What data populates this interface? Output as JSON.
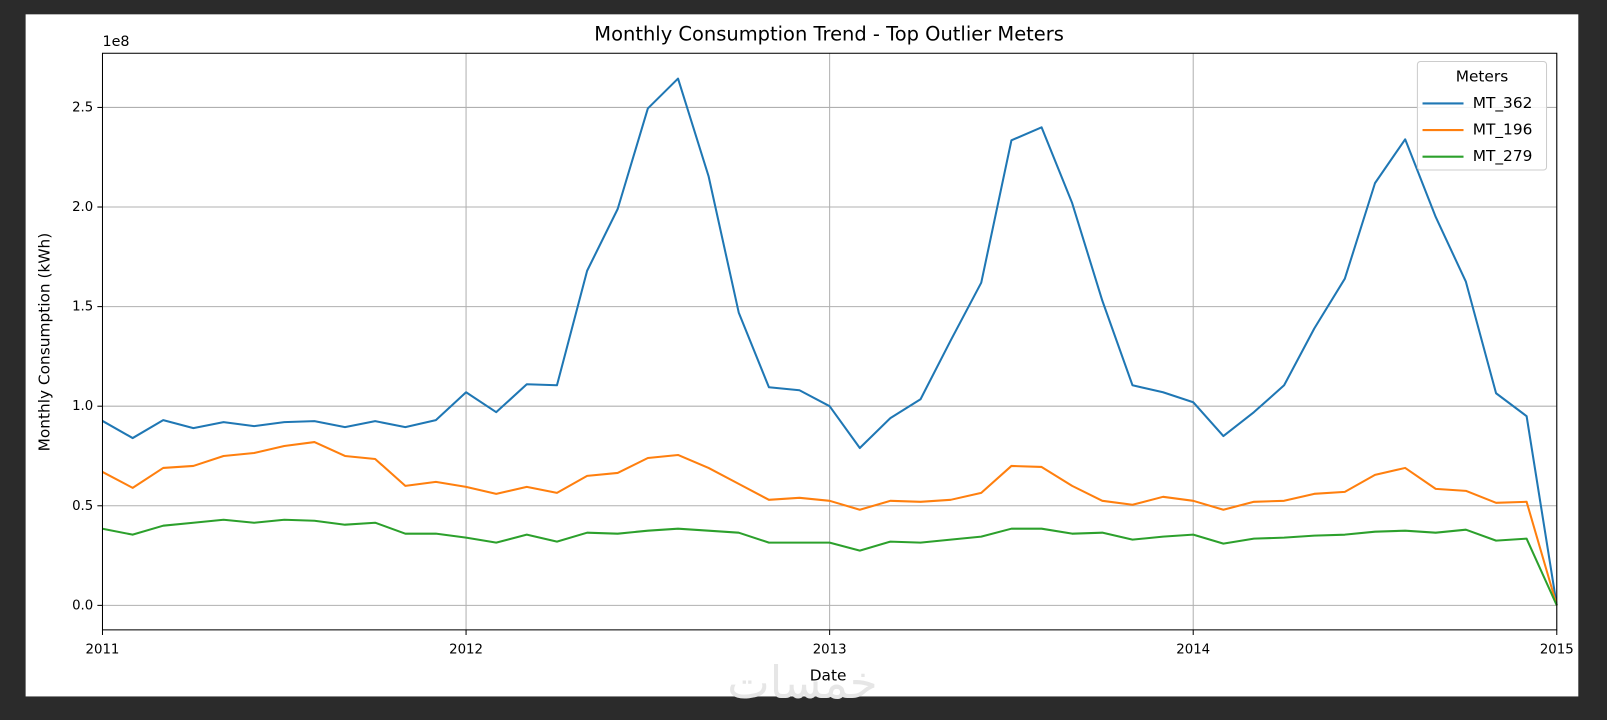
{
  "chart_data": {
    "type": "line",
    "title": "Monthly Consumption Trend - Top Outlier Meters",
    "xlabel": "Date",
    "ylabel": "Monthly Consumption (kWh)",
    "y_offset_label": "1e8",
    "watermark": "خمسات",
    "legend_title": "Meters",
    "legend_loc": "upper right",
    "grid": true,
    "xlim": [
      2011,
      2015
    ],
    "xticks": [
      2011,
      2012,
      2013,
      2014,
      2015
    ],
    "ylim": [
      -0.123,
      2.772
    ],
    "yticks": [
      {
        "value": 0,
        "label": "0.0"
      },
      0.5,
      {
        "value": 1,
        "label": "1.0"
      },
      1.5,
      {
        "value": 2,
        "label": "2.0"
      },
      2.5
    ],
    "x": [
      2011,
      2011.083,
      2011.167,
      2011.25,
      2011.333,
      2011.417,
      2011.5,
      2011.583,
      2011.667,
      2011.75,
      2011.833,
      2011.917,
      2012,
      2012.083,
      2012.167,
      2012.25,
      2012.333,
      2012.417,
      2012.5,
      2012.583,
      2012.667,
      2012.75,
      2012.833,
      2012.917,
      2013,
      2013.083,
      2013.167,
      2013.25,
      2013.333,
      2013.417,
      2013.5,
      2013.583,
      2013.667,
      2013.75,
      2013.833,
      2013.917,
      2014,
      2014.083,
      2014.167,
      2014.25,
      2014.333,
      2014.417,
      2014.5,
      2014.583,
      2014.667,
      2014.75,
      2014.833,
      2014.917,
      2015
    ],
    "series": [
      {
        "name": "MT_362",
        "color": "#1f77b4",
        "values": [
          0.926,
          0.84,
          0.93,
          0.89,
          0.92,
          0.9,
          0.92,
          0.925,
          0.895,
          0.925,
          0.895,
          0.93,
          1.07,
          0.97,
          1.11,
          1.105,
          1.68,
          1.99,
          2.495,
          2.645,
          2.155,
          1.47,
          1.095,
          1.08,
          1.0,
          0.79,
          0.94,
          1.035,
          1.33,
          1.62,
          2.335,
          2.4,
          2.02,
          1.53,
          1.105,
          1.07,
          1.02,
          0.85,
          0.97,
          1.105,
          1.39,
          1.64,
          2.12,
          2.34,
          1.95,
          1.625,
          1.065,
          0.95,
          0
        ]
      },
      {
        "name": "MT_196",
        "color": "#ff7f0e",
        "values": [
          0.67,
          0.59,
          0.69,
          0.7,
          0.75,
          0.765,
          0.8,
          0.82,
          0.75,
          0.735,
          0.6,
          0.62,
          0.595,
          0.56,
          0.595,
          0.565,
          0.65,
          0.665,
          0.74,
          0.755,
          0.69,
          0.61,
          0.53,
          0.54,
          0.525,
          0.48,
          0.525,
          0.52,
          0.53,
          0.565,
          0.7,
          0.695,
          0.6,
          0.525,
          0.505,
          0.545,
          0.525,
          0.48,
          0.52,
          0.525,
          0.56,
          0.57,
          0.655,
          0.69,
          0.585,
          0.575,
          0.515,
          0.52,
          0
        ]
      },
      {
        "name": "MT_279",
        "color": "#2ca02c",
        "values": [
          0.385,
          0.355,
          0.4,
          0.415,
          0.43,
          0.415,
          0.43,
          0.425,
          0.405,
          0.415,
          0.36,
          0.36,
          0.34,
          0.315,
          0.355,
          0.32,
          0.365,
          0.36,
          0.375,
          0.385,
          0.375,
          0.365,
          0.315,
          0.315,
          0.315,
          0.275,
          0.32,
          0.315,
          0.33,
          0.345,
          0.385,
          0.385,
          0.36,
          0.365,
          0.33,
          0.345,
          0.355,
          0.31,
          0.335,
          0.34,
          0.35,
          0.355,
          0.37,
          0.375,
          0.365,
          0.38,
          0.325,
          0.335,
          0
        ]
      }
    ]
  }
}
